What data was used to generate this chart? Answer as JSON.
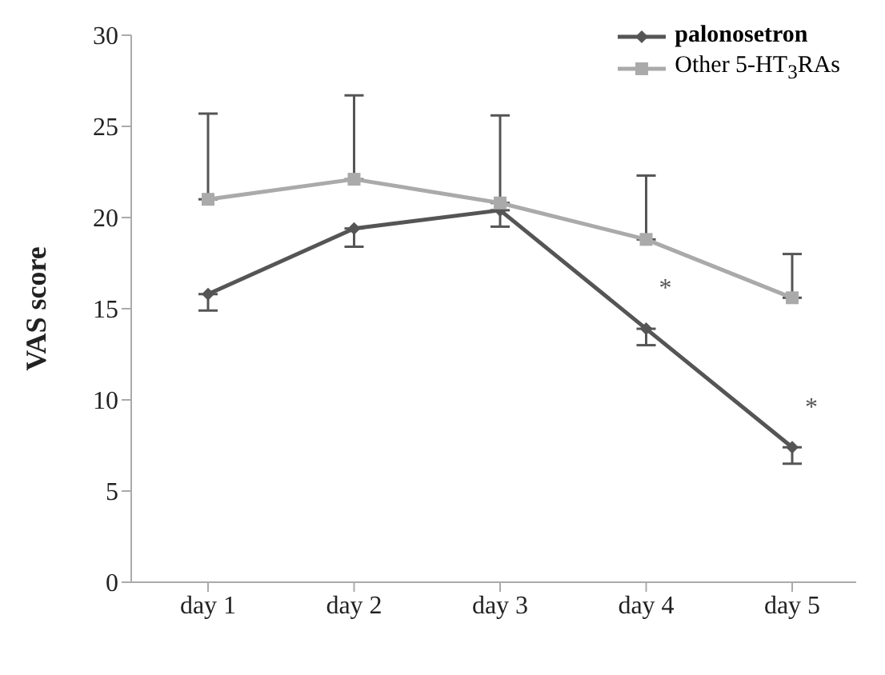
{
  "chart_data": {
    "type": "line",
    "ylabel": "VAS score",
    "categories": [
      "day 1",
      "day 2",
      "day 3",
      "day 4",
      "day 5"
    ],
    "ylim": [
      0,
      30
    ],
    "yticks": [
      0,
      5,
      10,
      15,
      20,
      25,
      30
    ],
    "grid": false,
    "legend": "top right",
    "line_style": "solid",
    "series": [
      {
        "name": "palonosetron",
        "color": "#555555",
        "marker": "diamond",
        "values": [
          15.8,
          19.4,
          20.4,
          13.9,
          7.4
        ],
        "errors": [
          [
            14.9,
            15.8
          ],
          [
            18.4,
            19.4
          ],
          [
            19.5,
            20.4
          ],
          [
            13.0,
            13.9
          ],
          [
            6.5,
            7.4
          ]
        ]
      },
      {
        "name": "Other 5-HT$_{3}$RAs",
        "color": "#aaaaaa",
        "marker": "square",
        "values": [
          21.0,
          22.1,
          20.8,
          18.8,
          15.6
        ],
        "errors": [
          [
            21.0,
            25.7
          ],
          [
            22.1,
            26.7
          ],
          [
            20.8,
            25.6
          ],
          [
            18.8,
            22.3
          ],
          [
            15.6,
            18.0
          ]
        ]
      }
    ],
    "annotations": [
      "*",
      "*"
    ]
  }
}
